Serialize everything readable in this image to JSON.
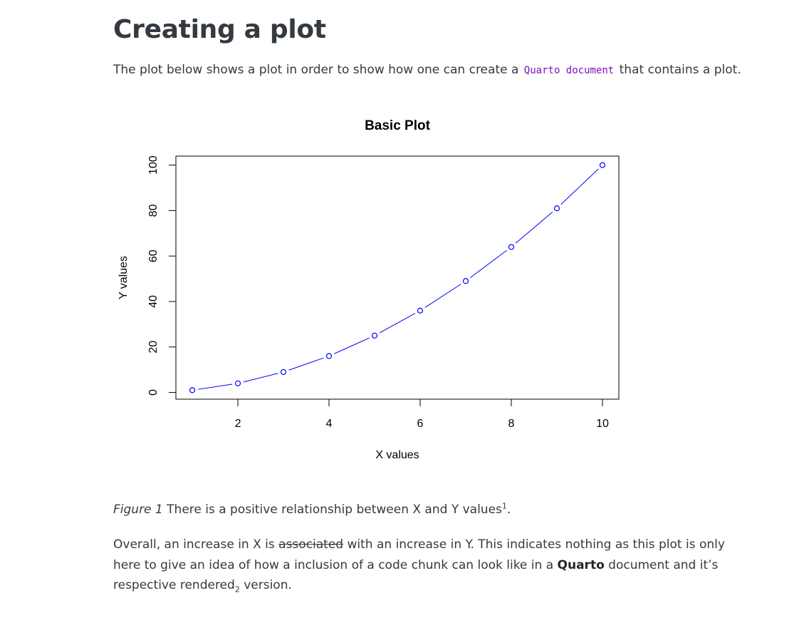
{
  "page": {
    "heading": "Creating a plot",
    "intro": {
      "before": "The plot below shows a plot in order to show how one can create a ",
      "code": "Quarto document",
      "after": " that contains a plot."
    },
    "caption": {
      "label": "Figure 1",
      "text": " There is a positive relationship between X and Y values",
      "footnote": "1",
      "end": "."
    },
    "paragraph": {
      "p1": "Overall, an increase in X is ",
      "strike": "associated",
      "p2": " with an increase in Y. This indicates nothing as this plot is only here to give an idea of how a inclusion of a code chunk can look like in a ",
      "bold": "Quarto",
      "p3": " document and it’s respective rendered",
      "sub": "2",
      "p4": " version."
    }
  },
  "colors": {
    "code": "#7d12ba",
    "series": "#0000ff",
    "text": "#343a40"
  },
  "chart_data": {
    "type": "line",
    "title": "Basic Plot",
    "xlabel": "X values",
    "ylabel": "Y values",
    "x": [
      1,
      2,
      3,
      4,
      5,
      6,
      7,
      8,
      9,
      10
    ],
    "y": [
      1,
      4,
      9,
      16,
      25,
      36,
      49,
      64,
      81,
      100
    ],
    "xlim": [
      0.64,
      10.36
    ],
    "ylim": [
      -2.96,
      103.96
    ],
    "xticks": [
      2,
      4,
      6,
      8,
      10
    ],
    "yticks": [
      0,
      20,
      40,
      60,
      80,
      100
    ],
    "marker": "open-circle",
    "line_style": "points-and-lines",
    "grid": false,
    "legend": "none"
  }
}
